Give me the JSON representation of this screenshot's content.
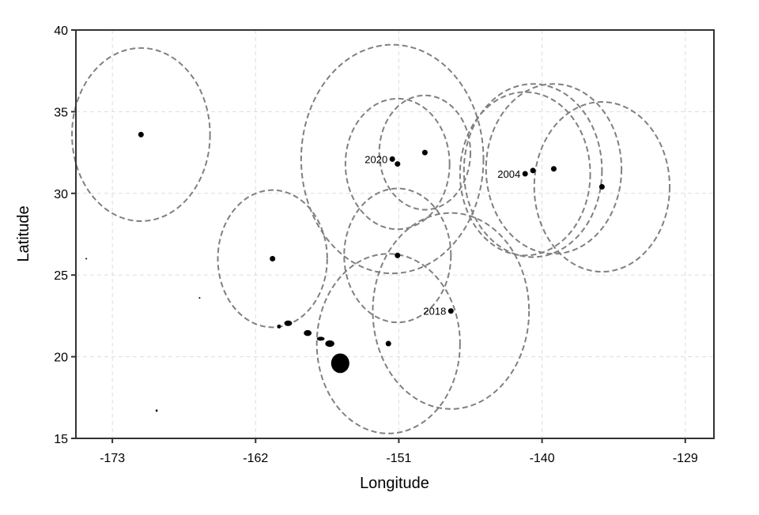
{
  "chart_data": {
    "type": "scatter",
    "title": "",
    "xlabel": "Longitude",
    "ylabel": "Latitude",
    "xlim": [
      -175.8,
      -126.8
    ],
    "ylim": [
      15,
      40
    ],
    "xticks": [
      -173,
      -162,
      -151,
      -140,
      -129
    ],
    "yticks": [
      15,
      20,
      25,
      30,
      35,
      40
    ],
    "xtick_labels": [
      "-173",
      "-162",
      "-151",
      "-140",
      "-129"
    ],
    "ytick_labels": [
      "15",
      "20",
      "25",
      "30",
      "35",
      "40"
    ],
    "grid": true,
    "legend": "none",
    "colors": {
      "points": "#000000",
      "circles": "#808080",
      "grid": "#dddddd",
      "land": "#000000"
    },
    "points": [
      {
        "lon": -170.8,
        "lat": 33.6,
        "radius": 5.3,
        "label": ""
      },
      {
        "lon": -151.5,
        "lat": 32.1,
        "radius": 7.0,
        "label": "2020"
      },
      {
        "lon": -151.1,
        "lat": 31.8,
        "radius": 4.0,
        "label": ""
      },
      {
        "lon": -149.0,
        "lat": 32.5,
        "radius": 3.5,
        "label": ""
      },
      {
        "lon": -141.3,
        "lat": 31.2,
        "radius": 5.0,
        "label": "2004"
      },
      {
        "lon": -140.7,
        "lat": 31.4,
        "radius": 5.3,
        "label": ""
      },
      {
        "lon": -139.1,
        "lat": 31.5,
        "radius": 5.2,
        "label": ""
      },
      {
        "lon": -135.4,
        "lat": 30.4,
        "radius": 5.2,
        "label": ""
      },
      {
        "lon": -160.7,
        "lat": 26.0,
        "radius": 4.2,
        "label": ""
      },
      {
        "lon": -151.1,
        "lat": 26.2,
        "radius": 4.1,
        "label": ""
      },
      {
        "lon": -147.0,
        "lat": 22.8,
        "radius": 6.0,
        "label": "2018"
      },
      {
        "lon": -151.8,
        "lat": 20.8,
        "radius": 5.5,
        "label": ""
      }
    ],
    "islands": [
      {
        "lon": -155.5,
        "lat": 19.6,
        "rx": 0.7,
        "ry": 0.6
      },
      {
        "lon": -156.3,
        "lat": 20.8,
        "rx": 0.35,
        "ry": 0.2
      },
      {
        "lon": -157.0,
        "lat": 21.1,
        "rx": 0.3,
        "ry": 0.12
      },
      {
        "lon": -158.0,
        "lat": 21.45,
        "rx": 0.3,
        "ry": 0.18
      },
      {
        "lon": -159.5,
        "lat": 22.05,
        "rx": 0.3,
        "ry": 0.17
      },
      {
        "lon": -160.2,
        "lat": 21.85,
        "rx": 0.15,
        "ry": 0.12
      },
      {
        "lon": -169.6,
        "lat": 16.7,
        "rx": 0.08,
        "ry": 0.07
      },
      {
        "lon": -175.0,
        "lat": 26.0,
        "rx": 0.06,
        "ry": 0.05
      },
      {
        "lon": -166.3,
        "lat": 23.6,
        "rx": 0.05,
        "ry": 0.05
      }
    ]
  }
}
